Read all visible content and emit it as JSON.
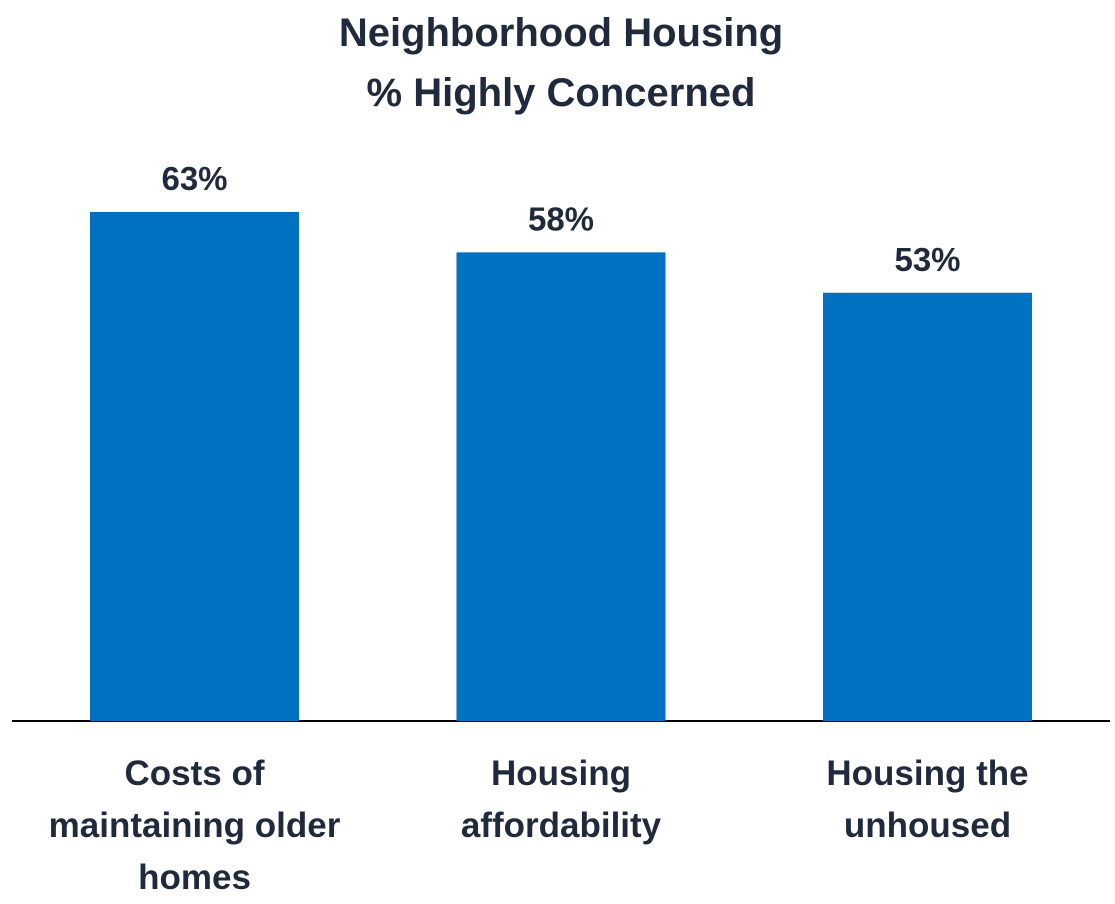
{
  "chart_data": {
    "type": "bar",
    "title": "Neighborhood Housing",
    "subtitle": "% Highly Concerned",
    "categories": [
      "Costs of maintaining older homes",
      "Housing affordability",
      "Housing the unhoused"
    ],
    "values": [
      63,
      58,
      53
    ],
    "value_labels": [
      "63%",
      "58%",
      "53%"
    ],
    "color": "#0070c0"
  }
}
